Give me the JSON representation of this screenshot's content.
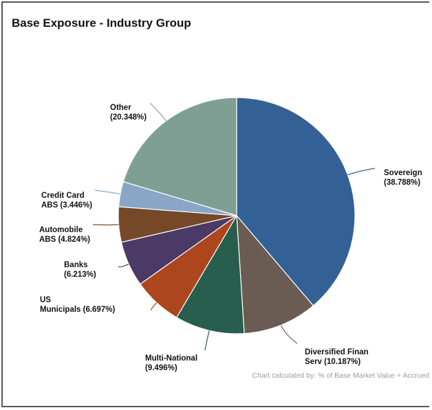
{
  "chart_data": {
    "type": "pie",
    "title": "Base Exposure - Industry Group",
    "footnote": "Chart calculated by: % of Base Market Value + Accrued",
    "slices": [
      {
        "label": [
          "Sovereign",
          "(38.788%)"
        ],
        "value": 38.788,
        "color": "#336196"
      },
      {
        "label": [
          "Diversified Finan",
          "Serv (10.187%)"
        ],
        "value": 10.187,
        "color": "#6a5c52"
      },
      {
        "label": [
          "Multi-National",
          "(9.496%)"
        ],
        "value": 9.496,
        "color": "#275e4d"
      },
      {
        "label": [
          "US",
          "Municipals (6.697%)"
        ],
        "value": 6.697,
        "color": "#ad451d"
      },
      {
        "label": [
          "Banks",
          "(6.213%)"
        ],
        "value": 6.213,
        "color": "#4b3a66"
      },
      {
        "label": [
          "Automobile",
          "ABS (4.824%)"
        ],
        "value": 4.824,
        "color": "#754828"
      },
      {
        "label": [
          "Credit Card",
          "ABS (3.446%)"
        ],
        "value": 3.446,
        "color": "#8aa6c6"
      },
      {
        "label": [
          "Other",
          "(20.348%)"
        ],
        "value": 20.348,
        "color": "#7f9f95"
      }
    ]
  }
}
